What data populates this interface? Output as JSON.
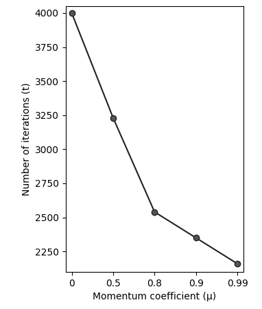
{
  "chart_data": {
    "type": "line",
    "x_label": "Momentum coefficient (μ)",
    "y_label": "Number of iterations (t)",
    "categories": [
      "0",
      "0.5",
      "0.8",
      "0.9",
      "0.99"
    ],
    "values": [
      4000,
      3230,
      2540,
      2350,
      2160
    ],
    "color": "#222222",
    "marker": "o",
    "line_style": "solid",
    "ylim": [
      2100,
      4050
    ],
    "yticks": [
      2250,
      2500,
      2750,
      3000,
      3250,
      3500,
      3750,
      4000
    ],
    "grid": false
  }
}
